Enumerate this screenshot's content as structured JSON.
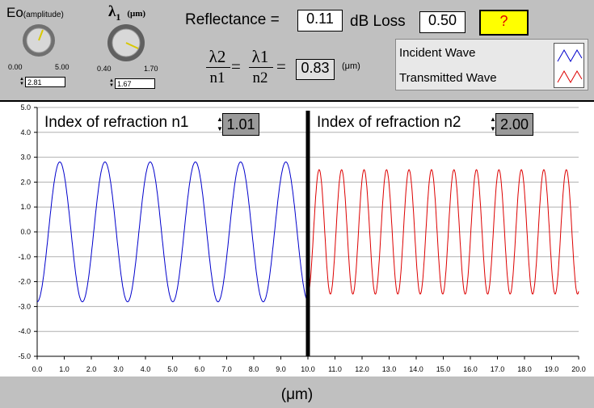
{
  "eo": {
    "label": "Eo",
    "label_sub": "(amplitude)",
    "min": "0.00",
    "max": "5.00",
    "value": "2.81"
  },
  "lambda1": {
    "label": "λ",
    "label_sub": "1",
    "unit": "(μm)",
    "min": "0.40",
    "max": "1.70",
    "value": "1.67"
  },
  "reflectance": {
    "label": "Reflectance =",
    "value": "0.11"
  },
  "dbloss": {
    "label": "dB Loss",
    "value": "0.50"
  },
  "help_button": {
    "label": "?"
  },
  "ratio": {
    "lhs_num": "λ2",
    "lhs_den": "n1",
    "eq1": "=",
    "rhs_num": "λ1",
    "rhs_den": "n2",
    "eq2": "=",
    "value": "0.83",
    "unit": "(μm)"
  },
  "legend": {
    "incident": "Incident Wave",
    "transmitted": "Transmitted Wave",
    "incident_color": "#0000cc",
    "transmitted_color": "#dd0000"
  },
  "n1": {
    "label": "Index of refraction  n1",
    "value": "1.01"
  },
  "n2": {
    "label": "Index of refraction  n2",
    "value": "2.00"
  },
  "x_unit": "(μm)",
  "chart_data": {
    "type": "line",
    "xlim": [
      0,
      20
    ],
    "ylim": [
      -5,
      5
    ],
    "x_ticks": [
      "0.0",
      "1.0",
      "2.0",
      "3.0",
      "4.0",
      "5.0",
      "6.0",
      "7.0",
      "8.0",
      "9.0",
      "10.0",
      "11.0",
      "12.0",
      "13.0",
      "14.0",
      "15.0",
      "16.0",
      "17.0",
      "18.0",
      "19.0",
      "20.0"
    ],
    "y_ticks": [
      "5.0",
      "4.0",
      "3.0",
      "2.0",
      "1.0",
      "0.0",
      "-1.0",
      "-2.0",
      "-3.0",
      "-4.0",
      "-5.0"
    ],
    "grid": true,
    "interface_x": 10,
    "series": [
      {
        "name": "Incident Wave",
        "x_range": [
          0,
          10
        ],
        "amplitude": 2.81,
        "wavelength": 1.67,
        "phase_start_value": -2.81
      },
      {
        "name": "Transmitted Wave",
        "x_range": [
          10,
          20
        ],
        "amplitude": 2.5,
        "wavelength": 0.83,
        "phase_start_value": -2.3
      }
    ]
  }
}
